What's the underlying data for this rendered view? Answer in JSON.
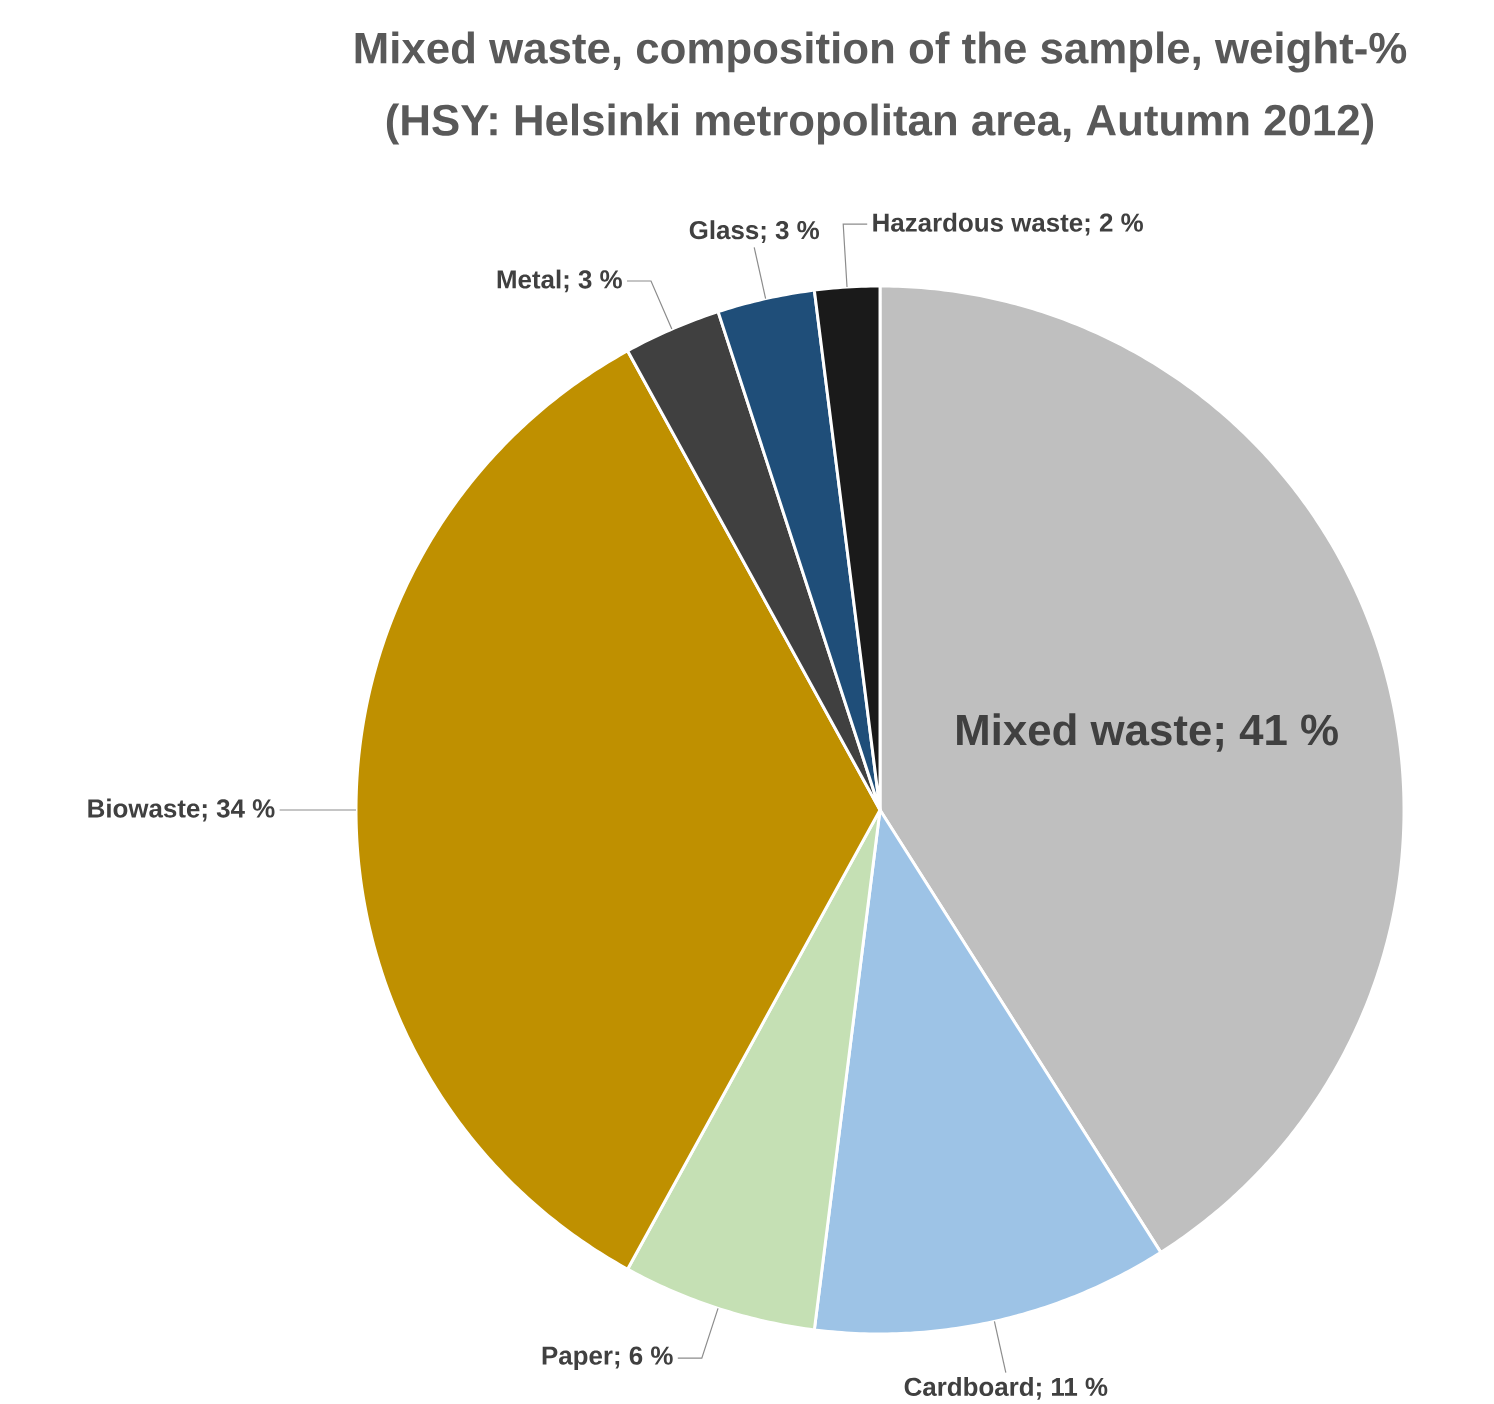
{
  "chart_data": {
    "type": "pie",
    "title": "Mixed waste, composition of the sample, weight-%",
    "subtitle": "(HSY: Helsinki metropolitan area, Autumn 2012)",
    "categories": [
      "Mixed waste",
      "Cardboard",
      "Paper",
      "Biowaste",
      "Metal",
      "Glass",
      "Hazardous waste"
    ],
    "values": [
      41,
      11,
      6,
      34,
      3,
      3,
      2
    ],
    "value_labels": [
      "; 41 %",
      "; 11 %",
      "; 6 %",
      "; 34 %",
      "; 3 %",
      "; 3 %",
      "; 2 %"
    ],
    "colors": [
      "#bfbfbf",
      "#9dc3e6",
      "#c5e0b4",
      "#bf9000",
      "#404040",
      "#1f4e79",
      "#1a1a1a"
    ],
    "legend": false
  }
}
